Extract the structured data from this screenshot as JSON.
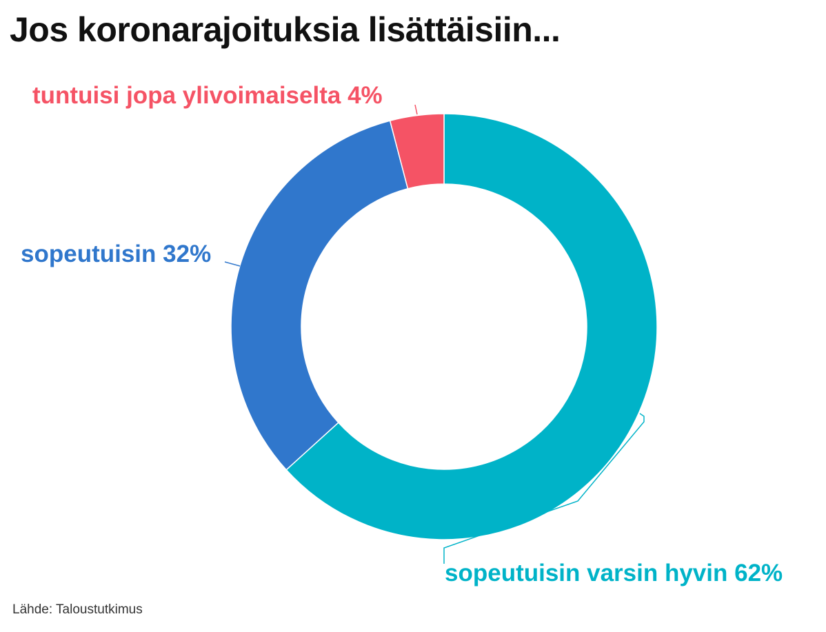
{
  "title": "Jos koronarajoituksia lisättäisiin...",
  "source": "Lähde: Taloustutkimus",
  "chart_data": {
    "type": "pie",
    "donut": true,
    "categories": [
      "sopeutuisin varsin hyvin",
      "sopeutuisin",
      "tuntuisi jopa ylivoimaiselta"
    ],
    "values": [
      62,
      32,
      4
    ],
    "unit": "%",
    "colors": [
      "#00b3c8",
      "#3077cc",
      "#f55365"
    ],
    "labels": [
      {
        "name": "sopeutuisin varsin hyvin",
        "value": "62%"
      },
      {
        "name": "sopeutuisin",
        "value": "32%"
      },
      {
        "name": "tuntuisi jopa ylivoimaiselta",
        "value": "4%"
      }
    ]
  }
}
